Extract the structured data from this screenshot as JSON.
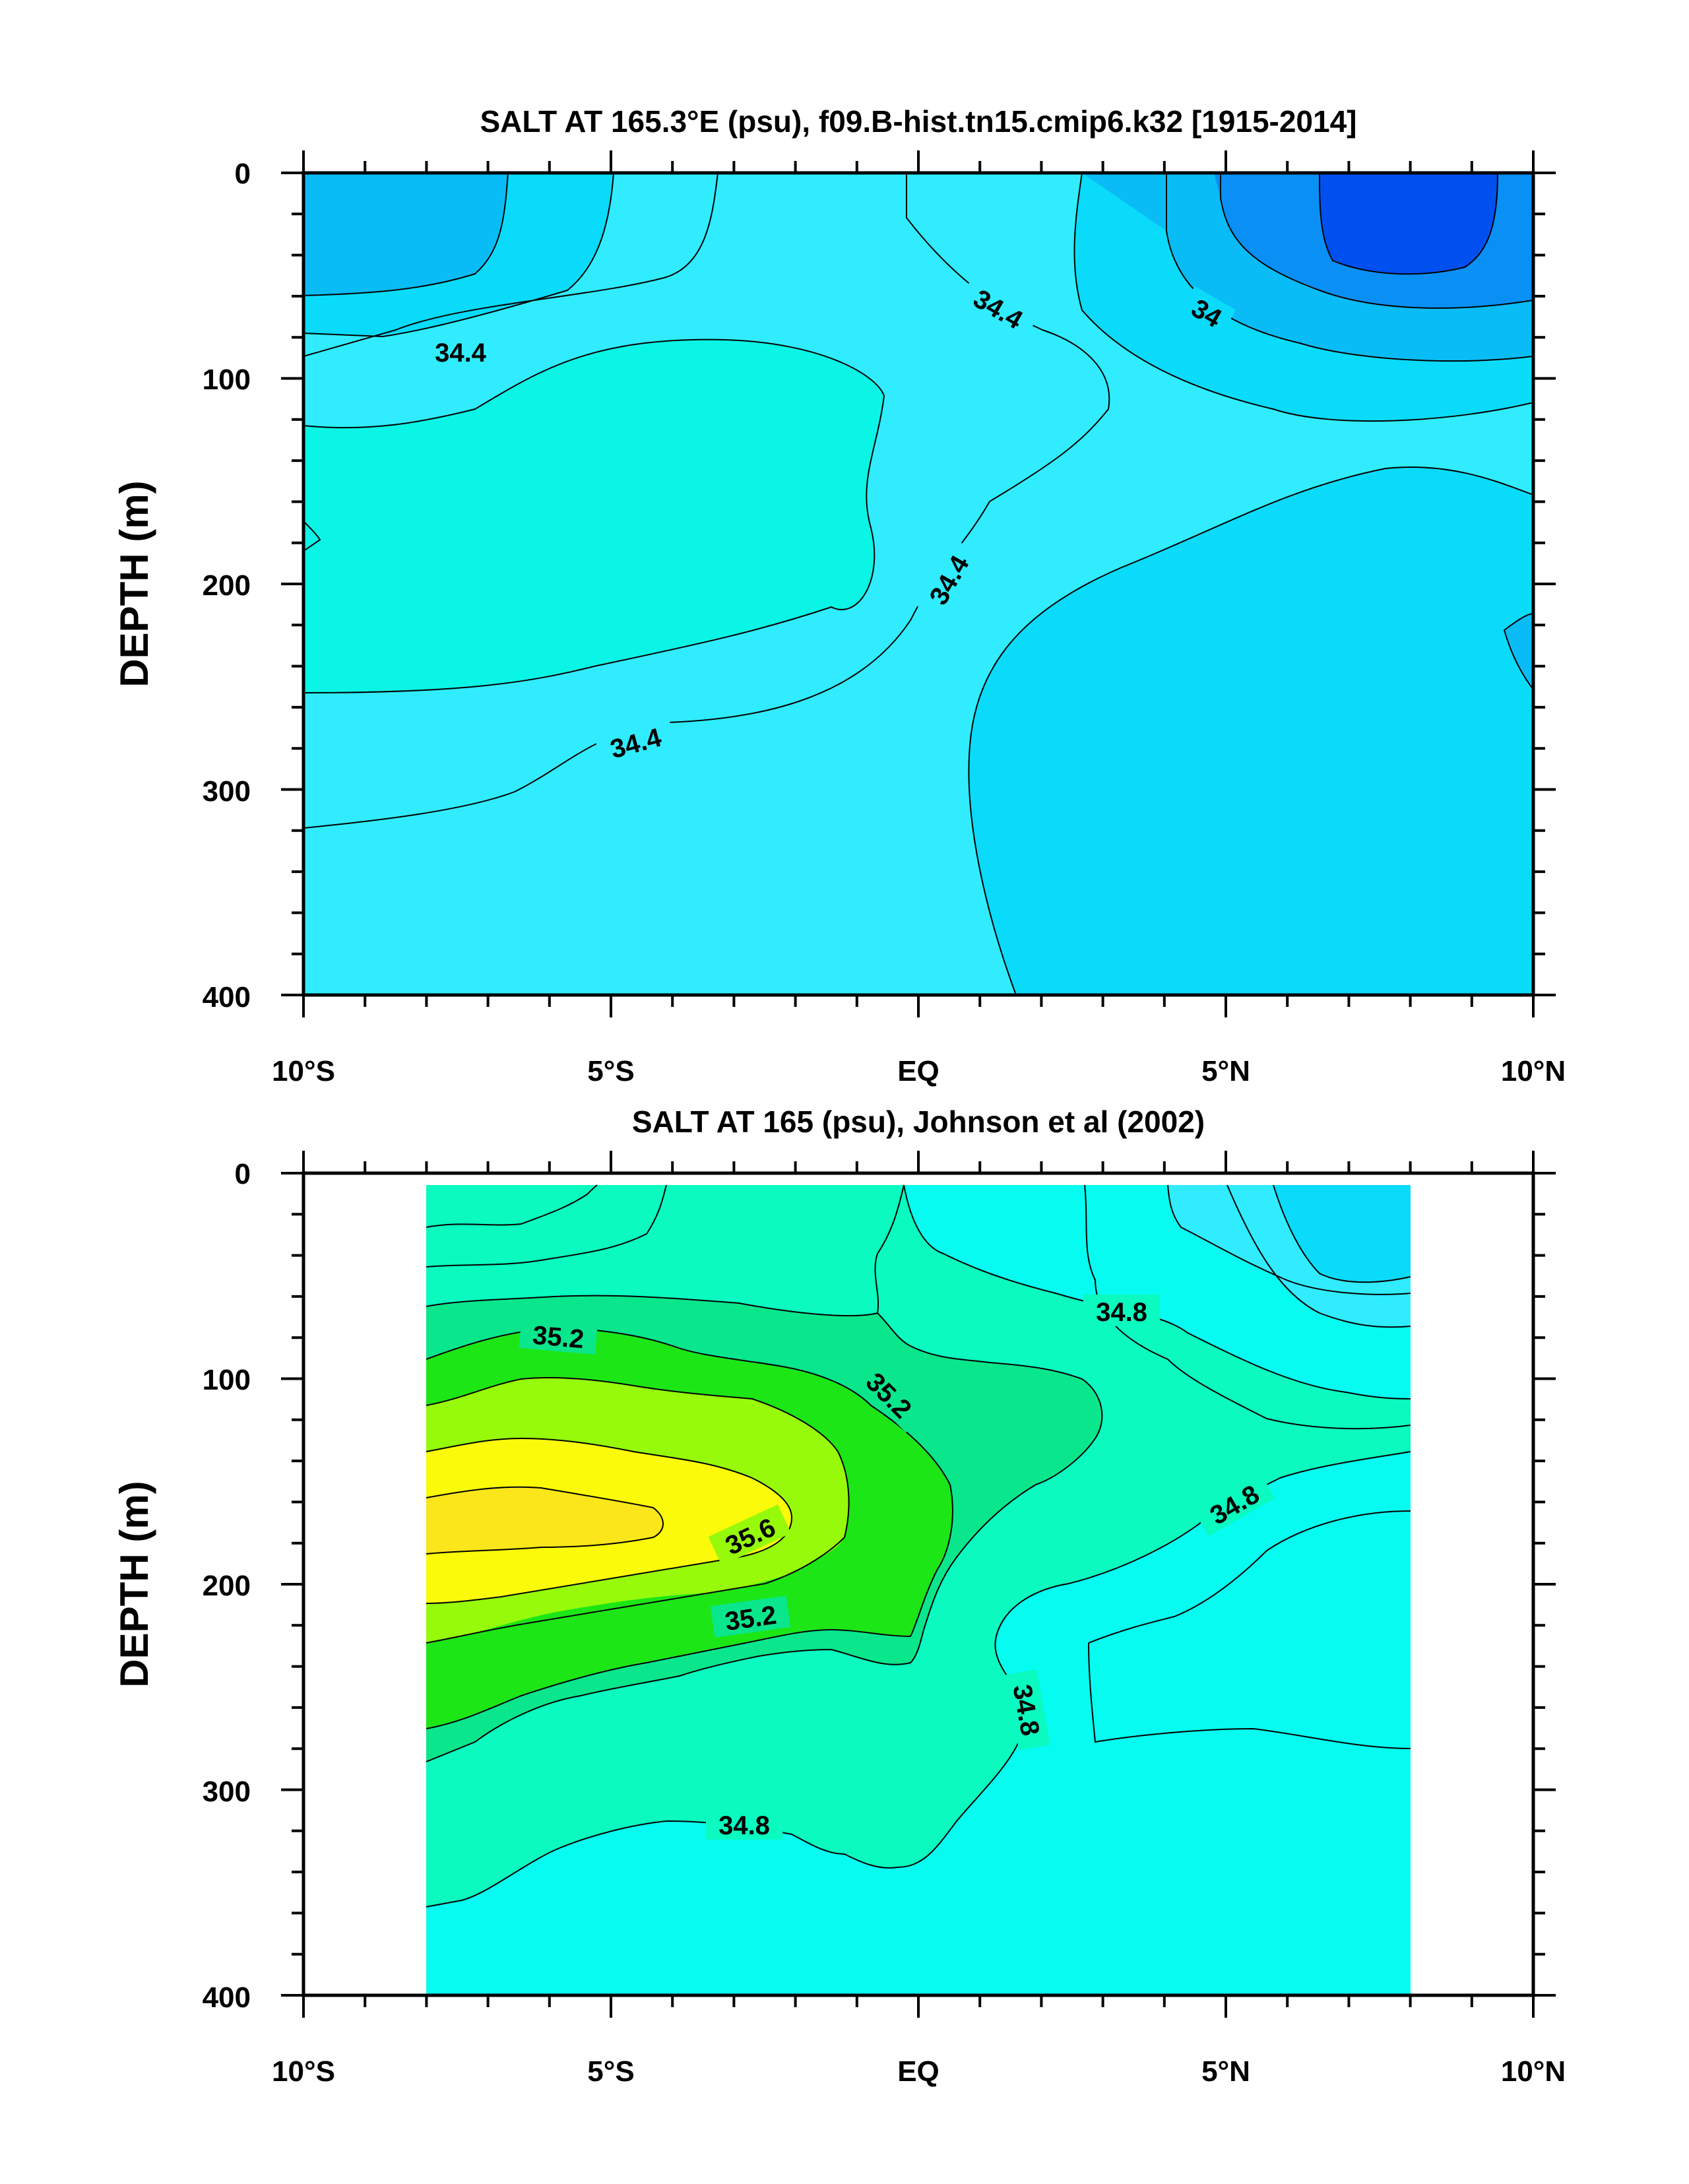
{
  "chart_data": [
    {
      "type": "heatmap",
      "subtype": "filled contour",
      "title": "SALT AT 165.3°E (psu), f09.B-hist.tn15.cmip6.k32 [1915-2014]",
      "ylabel": "DEPTH (m)",
      "xlabel": "",
      "xlim": [
        -10,
        10
      ],
      "ylim": [
        400,
        0
      ],
      "yticks": [
        "0",
        "100",
        "200",
        "300",
        "400"
      ],
      "xticks": [
        "10°S",
        "5°S",
        "EQ",
        "5°N",
        "10°N"
      ],
      "y_inverted": true,
      "fill_levels": [
        {
          "range": "< 33.8",
          "color": "#0050f0"
        },
        {
          "range": "33.8-34.0",
          "color": "#0a8ff5"
        },
        {
          "range": "34.0-34.2",
          "color": "#0abcf5"
        },
        {
          "range": "34.2-34.4",
          "color": "#0adbfa"
        },
        {
          "range": "34.4-34.6",
          "color": "#30ecfe"
        },
        {
          "range": "34.6-34.8",
          "color": "#0af5e6"
        }
      ],
      "contour_labels": [
        "34.4",
        "34.4",
        "34",
        "34.4",
        "34.4"
      ]
    },
    {
      "type": "heatmap",
      "subtype": "filled contour",
      "title": "SALT AT 165 (psu), Johnson et al (2002)",
      "ylabel": "DEPTH (m)",
      "xlabel": "",
      "xlim": [
        -10,
        10
      ],
      "ylim": [
        400,
        0
      ],
      "data_x_extent": [
        -8,
        8
      ],
      "yticks": [
        "0",
        "100",
        "200",
        "300",
        "400"
      ],
      "xticks": [
        "10°S",
        "5°S",
        "EQ",
        "5°N",
        "10°N"
      ],
      "y_inverted": true,
      "fill_levels": [
        {
          "range": "34.2-34.4",
          "color": "#0adbfa"
        },
        {
          "range": "34.4-34.6",
          "color": "#30ecfe"
        },
        {
          "range": "34.6-34.8",
          "color": "#06fcf0"
        },
        {
          "range": "34.8-35.0",
          "color": "#0afac0"
        },
        {
          "range": "35.0-35.2",
          "color": "#0ae68c"
        },
        {
          "range": "35.2-35.4",
          "color": "#1ce616"
        },
        {
          "range": "35.4-35.6",
          "color": "#96fa0a"
        },
        {
          "range": "35.6-35.8",
          "color": "#fafa0a"
        },
        {
          "range": "> 35.8",
          "color": "#fae61a"
        }
      ],
      "contour_labels": [
        "35.2",
        "35.2",
        "34.8",
        "34.8",
        "35.6",
        "35.2",
        "34.8",
        "34.8"
      ]
    }
  ]
}
